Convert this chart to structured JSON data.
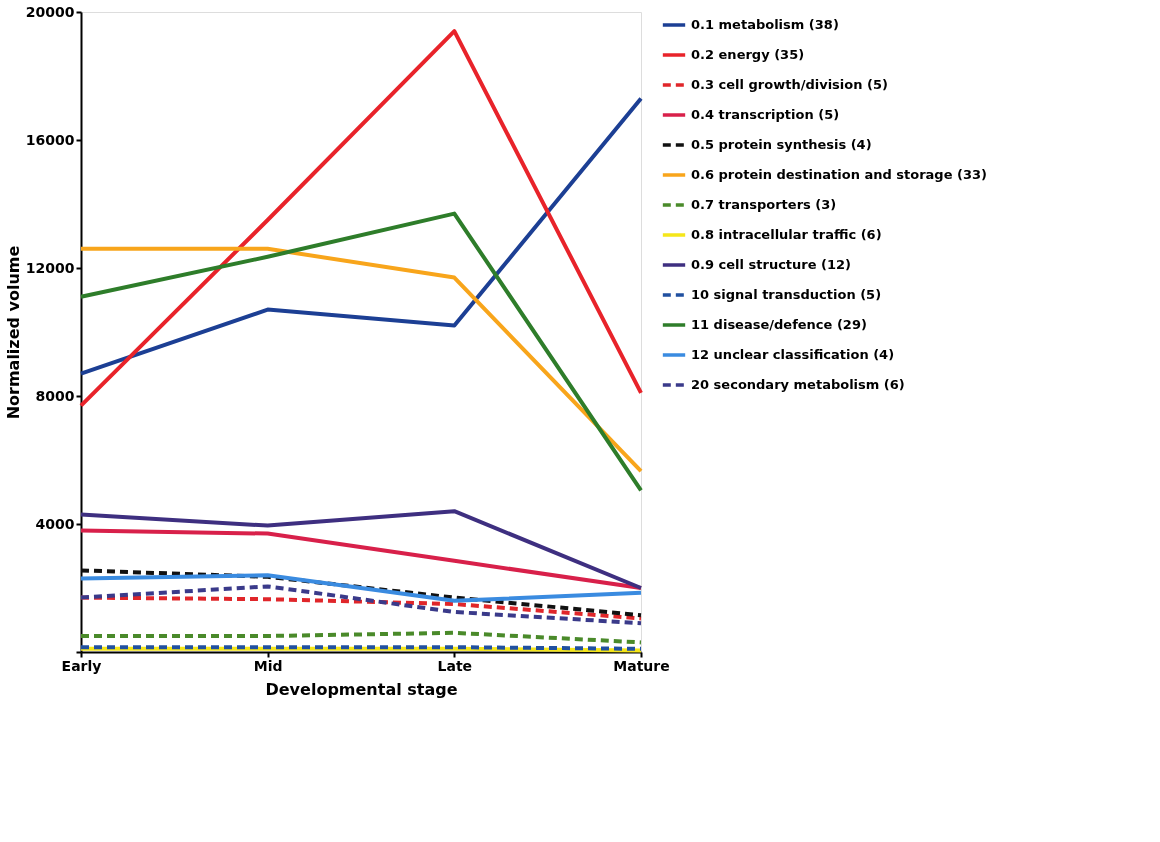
{
  "chart_data": {
    "type": "line",
    "xlabel": "Developmental stage",
    "ylabel": "Normalized volume",
    "categories": [
      "Early",
      "Mid",
      "Late",
      "Mature"
    ],
    "ylim": [
      0,
      20000
    ],
    "yticks": [
      {
        "value": 0,
        "label": null
      },
      4000,
      8000,
      12000,
      16000,
      20000
    ],
    "grid": false,
    "legend": "right",
    "series": [
      {
        "name": "0.1 metabolism (38)",
        "color": "#1c3f94",
        "line_style": "solid",
        "values": [
          8700,
          10700,
          10200,
          17300
        ]
      },
      {
        "name": "0.2 energy (35)",
        "color": "#e8232a",
        "line_style": "solid",
        "values": [
          7700,
          13500,
          19400,
          8100
        ]
      },
      {
        "name": "0.3 cell growth/division (5)",
        "color": "#e0262a",
        "line_style": "dashed",
        "values": [
          1700,
          1650,
          1500,
          1050
        ]
      },
      {
        "name": "0.4 transcription (5)",
        "color": "#d8204a",
        "line_style": "solid",
        "values": [
          3800,
          3700,
          2850,
          2000
        ]
      },
      {
        "name": "0.5 protein synthesis (4)",
        "color": "#111111",
        "line_style": "dashed",
        "values": [
          2550,
          2350,
          1700,
          1150
        ]
      },
      {
        "name": "0.6 protein destination and storage (33)",
        "color": "#f8a51b",
        "line_style": "solid",
        "values": [
          12600,
          12600,
          11700,
          5650
        ]
      },
      {
        "name": "0.7 transporters (3)",
        "color": "#4a8a2a",
        "line_style": "dashed",
        "values": [
          500,
          500,
          600,
          300
        ]
      },
      {
        "name": "0.8 intracellular traffic (6)",
        "color": "#f5e61a",
        "line_style": "solid",
        "values": [
          100,
          100,
          100,
          50
        ]
      },
      {
        "name": "0.9 cell structure (12)",
        "color": "#3e2f80",
        "line_style": "solid",
        "values": [
          4300,
          3950,
          4400,
          2000
        ]
      },
      {
        "name": "10 signal transduction (5)",
        "color": "#2050a0",
        "line_style": "dashed",
        "values": [
          150,
          150,
          150,
          100
        ]
      },
      {
        "name": "11 disease/defence (29)",
        "color": "#2e7d2a",
        "line_style": "solid",
        "values": [
          11100,
          12350,
          13700,
          5050
        ]
      },
      {
        "name": "12 unclear classification (4)",
        "color": "#3a8be0",
        "line_style": "solid",
        "values": [
          2300,
          2400,
          1600,
          1850
        ]
      },
      {
        "name": "20 secondary metabolism (6)",
        "color": "#3a3a8a",
        "line_style": "dashed",
        "values": [
          1700,
          2050,
          1250,
          900
        ]
      }
    ]
  }
}
